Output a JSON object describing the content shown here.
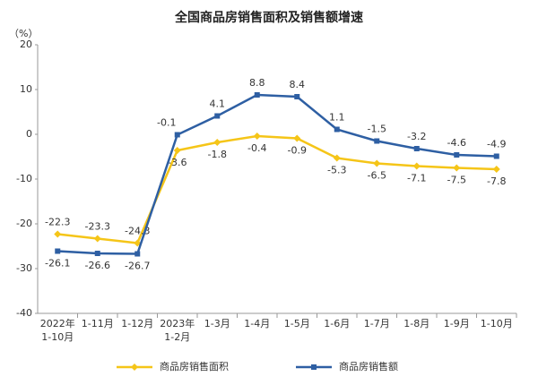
{
  "chart_data": {
    "type": "line",
    "title": "全国商品房销售面积及销售额增速",
    "y_label": "（%）",
    "categories": [
      "2022年\n1-10月",
      "1-11月",
      "1-12月",
      "2023年\n1-2月",
      "1-3月",
      "1-4月",
      "1-5月",
      "1-6月",
      "1-7月",
      "1-8月",
      "1-9月",
      "1-10月"
    ],
    "series": [
      {
        "name": "商品房销售面积",
        "color": "#f5c518",
        "values": [
          -22.3,
          -23.3,
          -24.3,
          -3.6,
          -1.8,
          -0.4,
          -0.9,
          -5.3,
          -6.5,
          -7.1,
          -7.5,
          -7.8
        ]
      },
      {
        "name": "商品房销售额",
        "color": "#2e5fa3",
        "values": [
          -26.1,
          -26.6,
          -26.7,
          -0.1,
          4.1,
          8.8,
          8.4,
          1.1,
          -1.5,
          -3.2,
          -4.6,
          -4.9
        ]
      }
    ],
    "ylim": [
      -40,
      20
    ],
    "yticks": [
      -40,
      -30,
      -20,
      -10,
      0,
      10,
      20
    ],
    "grid": false
  }
}
